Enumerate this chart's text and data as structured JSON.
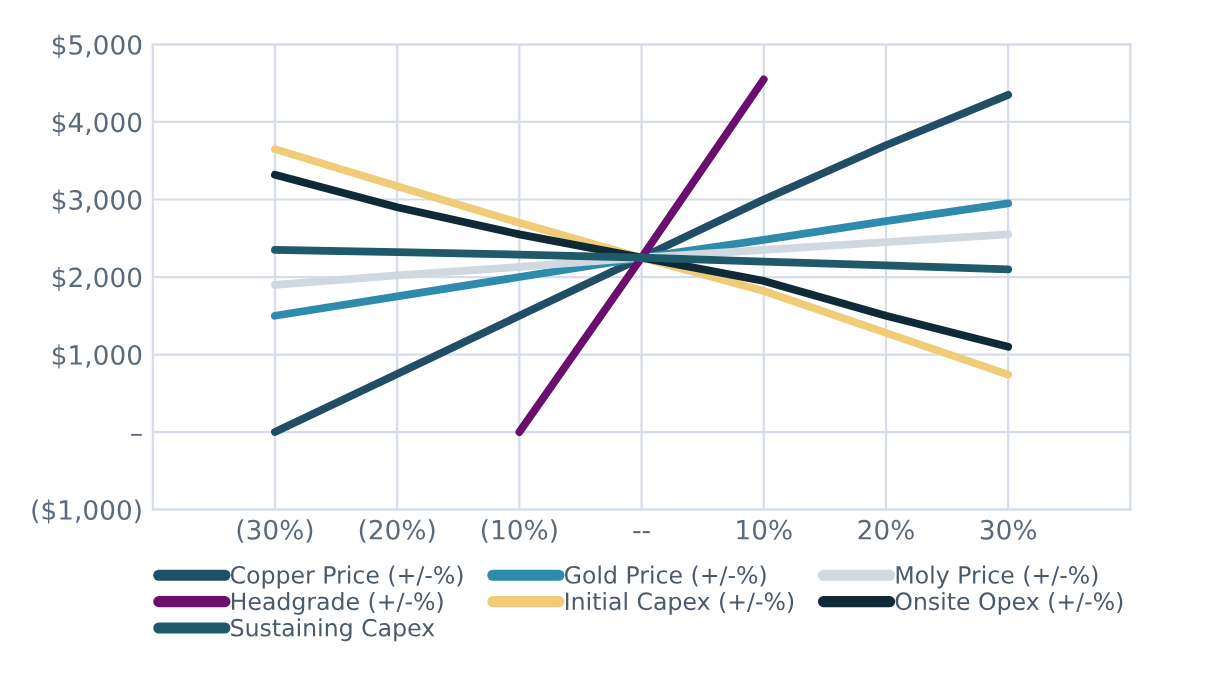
{
  "chart_data": {
    "type": "line",
    "categories": [
      "(30%)",
      "(20%)",
      "(10%)",
      "--",
      "10%",
      "20%",
      "30%"
    ],
    "series": [
      {
        "name": "Copper Price (+/-%)",
        "color": "#1f4e66",
        "values": [
          0,
          750,
          1500,
          2250,
          3000,
          3700,
          4350
        ]
      },
      {
        "name": "Gold Price (+/-%)",
        "color": "#2e8bab",
        "values": [
          1500,
          1750,
          2000,
          2250,
          2480,
          2720,
          2950
        ]
      },
      {
        "name": "Moly Price (+/-%)",
        "color": "#d0d8e0",
        "values": [
          1900,
          2020,
          2130,
          2250,
          2350,
          2450,
          2550
        ]
      },
      {
        "name": "Headgrade (+/-%)",
        "color": "#6a0f6e",
        "values": [
          null,
          null,
          0,
          2250,
          4550,
          null,
          null
        ]
      },
      {
        "name": "Initial Capex (+/-%)",
        "color": "#f0cc78",
        "values": [
          3650,
          3170,
          2700,
          2250,
          1820,
          1280,
          740
        ]
      },
      {
        "name": "Onsite Opex (+/-%)",
        "color": "#0f2a36",
        "values": [
          3320,
          2900,
          2550,
          2250,
          1950,
          1500,
          1100
        ]
      },
      {
        "name": "Sustaining Capex",
        "color": "#1f5a6a",
        "values": [
          2350,
          2320,
          2290,
          2250,
          2200,
          2150,
          2100
        ]
      }
    ],
    "ylim": [
      -1000,
      5000
    ],
    "yticks": [
      {
        "value": -1000,
        "label": "($1,000)"
      },
      {
        "value": 0,
        "label": "–"
      },
      {
        "value": 1000,
        "label": "$1,000"
      },
      {
        "value": 2000,
        "label": "$2,000"
      },
      {
        "value": 3000,
        "label": "$3,000"
      },
      {
        "value": 4000,
        "label": "$4,000"
      },
      {
        "value": 5000,
        "label": "$5,000"
      }
    ],
    "grid": true,
    "legend": "bottom",
    "marker": "none",
    "line_style": "solid"
  }
}
